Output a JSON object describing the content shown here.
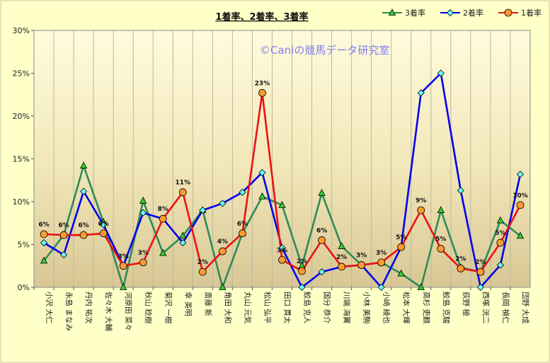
{
  "chart_data": {
    "type": "line",
    "title": "1着率、2着率、3着率",
    "watermark": "©Caniの競馬データ研究室",
    "categories": [
      "小沢 大仁",
      "永島 まなみ",
      "丹内 祐次",
      "佐々木 大輔",
      "河原田 菜々",
      "秋山 稔樹",
      "菊沢 一樹",
      "幸 英明",
      "斎藤 新",
      "角田 大和",
      "丸山 元気",
      "松山 弘平",
      "田口 貫太",
      "鮫島 克人",
      "国分 恭介",
      "川端 海翼",
      "小林 美駒",
      "小崎 綾也",
      "松本 大輝",
      "高杉 吏麒",
      "鮫島 克駿",
      "荻野 極",
      "西塚 洸二",
      "長岡 禎仁",
      "団野 大成"
    ],
    "y_ticks": [
      "0%",
      "5%",
      "10%",
      "15%",
      "20%",
      "25%",
      "30%"
    ],
    "ylim": [
      0,
      30
    ],
    "series": [
      {
        "name": "3着率",
        "color": "#2e8b57",
        "marker": "triangle",
        "marker_color": "#33cc33",
        "values": [
          3.1,
          6.1,
          14.2,
          7.6,
          0.0,
          10.1,
          4.0,
          6.0,
          9.0,
          0.0,
          6.3,
          10.6,
          9.6,
          2.5,
          11.0,
          4.8,
          2.6,
          2.9,
          1.6,
          0.0,
          9.0,
          2.3,
          1.8,
          7.8,
          6.0
        ]
      },
      {
        "name": "2着率",
        "color": "#0000ee",
        "marker": "diamond",
        "marker_color": "#66ffff",
        "values": [
          5.2,
          3.8,
          11.2,
          7.3,
          2.5,
          8.7,
          8.0,
          5.2,
          9.0,
          9.8,
          11.1,
          13.4,
          4.6,
          0.0,
          1.8,
          2.4,
          2.6,
          0.0,
          4.7,
          22.7,
          25.0,
          11.3,
          0.0,
          2.6,
          13.2
        ]
      },
      {
        "name": "1着率",
        "color": "#ee1111",
        "marker": "circle",
        "marker_color": "#ff9933",
        "values": [
          6.2,
          6.1,
          6.1,
          6.3,
          2.5,
          2.9,
          8.0,
          11.1,
          1.8,
          4.2,
          6.3,
          22.7,
          3.2,
          1.9,
          5.5,
          2.4,
          2.6,
          2.9,
          4.7,
          9.0,
          4.5,
          2.2,
          1.8,
          5.2,
          9.6
        ]
      }
    ],
    "data_labels": [
      "6%",
      "6%",
      "6%",
      "6%",
      "3%",
      "3%",
      "8%",
      "11%",
      "2%",
      "4%",
      "6%",
      "23%",
      "3%",
      "2%",
      "6%",
      "2%",
      "3%",
      "3%",
      "5%",
      "9%",
      "5%",
      "2%",
      "2%",
      "5%",
      "10%"
    ],
    "legend_position": "top-right",
    "grid": "vertical"
  }
}
